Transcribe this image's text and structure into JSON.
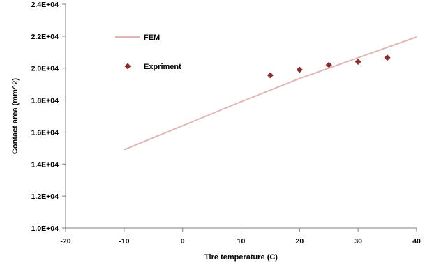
{
  "chart_data": {
    "type": "scatter",
    "xlabel": "Tire temperature (C)",
    "ylabel": "Contact area (mm^2)",
    "xlim": [
      -20,
      40
    ],
    "ylim": [
      10000,
      24000
    ],
    "x_ticks": [
      -20,
      -10,
      0,
      10,
      20,
      30,
      40
    ],
    "x_tick_labels": [
      "-20",
      "-10",
      "0",
      "10",
      "20",
      "30",
      "40"
    ],
    "y_ticks": [
      10000,
      12000,
      14000,
      16000,
      18000,
      20000,
      22000,
      24000
    ],
    "y_tick_labels": [
      "1.0E+04",
      "1.2E+04",
      "1.4E+04",
      "1.6E+04",
      "1.8E+04",
      "2.0E+04",
      "2.2E+04",
      "2.4E+04"
    ],
    "grid": false,
    "legend_position": "upper-left",
    "series": [
      {
        "name": "FEM",
        "type": "line",
        "color": "#e0b7b7",
        "x": [
          -10,
          0,
          10,
          20,
          30,
          40
        ],
        "y": [
          14900,
          16400,
          17900,
          19350,
          20650,
          21950
        ]
      },
      {
        "name": "Expriment",
        "type": "scatter",
        "marker": "diamond",
        "color": "#8b2e2e",
        "x": [
          15,
          20,
          25,
          30,
          35
        ],
        "y": [
          19550,
          19900,
          20200,
          20400,
          20650
        ]
      }
    ]
  }
}
